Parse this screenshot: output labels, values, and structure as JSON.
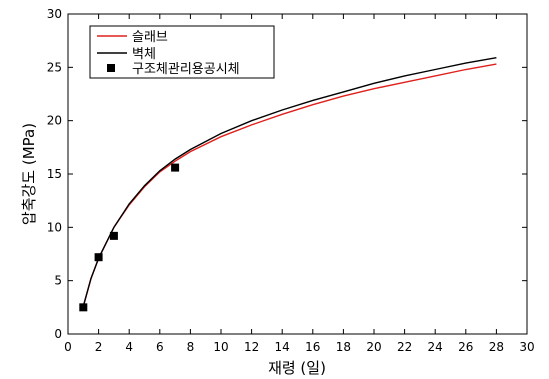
{
  "chart_data": {
    "type": "line",
    "xlabel": "재령 (일)",
    "ylabel": "압축강도 (MPa)",
    "xlim": [
      0,
      30
    ],
    "ylim": [
      0,
      30
    ],
    "xticks": [
      "0",
      "2",
      "4",
      "6",
      "8",
      "10",
      "12",
      "14",
      "16",
      "18",
      "20",
      "22",
      "24",
      "26",
      "28",
      "30"
    ],
    "yticks": [
      "0",
      "5",
      "10",
      "15",
      "20",
      "25",
      "30"
    ],
    "grid": false,
    "legend_position": "top-left",
    "series": [
      {
        "name": "슬래브",
        "type": "line",
        "color": "#e0201c",
        "x": [
          1,
          1.5,
          2,
          3,
          4,
          5,
          6,
          7,
          8,
          10,
          12,
          14,
          16,
          18,
          20,
          22,
          24,
          26,
          28
        ],
        "y": [
          2.6,
          5.2,
          7.1,
          10.0,
          12.1,
          13.8,
          15.2,
          16.2,
          17.1,
          18.5,
          19.6,
          20.6,
          21.5,
          22.3,
          23.0,
          23.6,
          24.2,
          24.8,
          25.3
        ]
      },
      {
        "name": "벽체",
        "type": "line",
        "color": "#000000",
        "x": [
          1,
          1.5,
          2,
          3,
          4,
          5,
          6,
          7,
          8,
          10,
          12,
          14,
          16,
          18,
          20,
          22,
          24,
          26,
          28
        ],
        "y": [
          2.6,
          5.2,
          7.1,
          10.0,
          12.2,
          13.9,
          15.3,
          16.4,
          17.3,
          18.8,
          20.0,
          21.0,
          21.9,
          22.7,
          23.5,
          24.2,
          24.8,
          25.4,
          25.9
        ]
      },
      {
        "name": "구조체관리용공시체",
        "type": "scatter",
        "color": "#000000",
        "x": [
          1,
          2,
          3,
          7
        ],
        "y": [
          2.5,
          7.2,
          9.2,
          15.6
        ]
      }
    ]
  }
}
